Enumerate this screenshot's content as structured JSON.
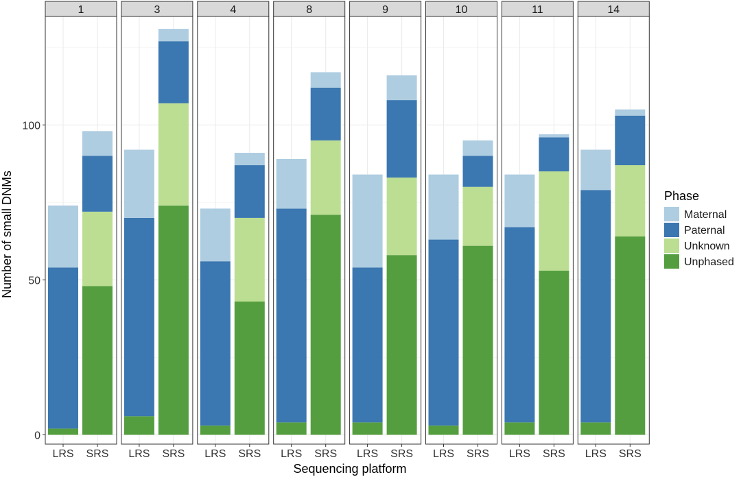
{
  "chart_data": {
    "type": "bar",
    "stacked": true,
    "facet_variable": "sample",
    "facets": [
      "1",
      "3",
      "4",
      "8",
      "9",
      "10",
      "11",
      "14"
    ],
    "categories": [
      "LRS",
      "SRS"
    ],
    "xlabel": "Sequencing platform",
    "ylabel": "Number of small DNMs",
    "ylim": [
      -3,
      135
    ],
    "yticks": [
      0,
      50,
      100
    ],
    "grid": true,
    "legend": {
      "title": "Phase",
      "position": "right",
      "items": [
        {
          "name": "Maternal",
          "color": "#aecde1"
        },
        {
          "name": "Paternal",
          "color": "#3b77b0"
        },
        {
          "name": "Unknown",
          "color": "#bbde93"
        },
        {
          "name": "Unphased",
          "color": "#559e3f"
        }
      ]
    },
    "stack_order": [
      "Unphased",
      "Unknown",
      "Paternal",
      "Maternal"
    ],
    "panels": [
      {
        "facet": "1",
        "bars": [
          {
            "platform": "LRS",
            "Unphased": 2,
            "Unknown": 0,
            "Paternal": 52,
            "Maternal": 20
          },
          {
            "platform": "SRS",
            "Unphased": 48,
            "Unknown": 24,
            "Paternal": 18,
            "Maternal": 8
          }
        ]
      },
      {
        "facet": "3",
        "bars": [
          {
            "platform": "LRS",
            "Unphased": 6,
            "Unknown": 0,
            "Paternal": 64,
            "Maternal": 22
          },
          {
            "platform": "SRS",
            "Unphased": 74,
            "Unknown": 33,
            "Paternal": 20,
            "Maternal": 4
          }
        ]
      },
      {
        "facet": "4",
        "bars": [
          {
            "platform": "LRS",
            "Unphased": 3,
            "Unknown": 0,
            "Paternal": 53,
            "Maternal": 17
          },
          {
            "platform": "SRS",
            "Unphased": 43,
            "Unknown": 27,
            "Paternal": 17,
            "Maternal": 4
          }
        ]
      },
      {
        "facet": "8",
        "bars": [
          {
            "platform": "LRS",
            "Unphased": 4,
            "Unknown": 0,
            "Paternal": 69,
            "Maternal": 16
          },
          {
            "platform": "SRS",
            "Unphased": 71,
            "Unknown": 24,
            "Paternal": 17,
            "Maternal": 5
          }
        ]
      },
      {
        "facet": "9",
        "bars": [
          {
            "platform": "LRS",
            "Unphased": 4,
            "Unknown": 0,
            "Paternal": 50,
            "Maternal": 30
          },
          {
            "platform": "SRS",
            "Unphased": 58,
            "Unknown": 25,
            "Paternal": 25,
            "Maternal": 8
          }
        ]
      },
      {
        "facet": "10",
        "bars": [
          {
            "platform": "LRS",
            "Unphased": 3,
            "Unknown": 0,
            "Paternal": 60,
            "Maternal": 21
          },
          {
            "platform": "SRS",
            "Unphased": 61,
            "Unknown": 19,
            "Paternal": 10,
            "Maternal": 5
          }
        ]
      },
      {
        "facet": "11",
        "bars": [
          {
            "platform": "LRS",
            "Unphased": 4,
            "Unknown": 0,
            "Paternal": 63,
            "Maternal": 17
          },
          {
            "platform": "SRS",
            "Unphased": 53,
            "Unknown": 32,
            "Paternal": 11,
            "Maternal": 1
          }
        ]
      },
      {
        "facet": "14",
        "bars": [
          {
            "platform": "LRS",
            "Unphased": 4,
            "Unknown": 0,
            "Paternal": 75,
            "Maternal": 13
          },
          {
            "platform": "SRS",
            "Unphased": 64,
            "Unknown": 23,
            "Paternal": 16,
            "Maternal": 2
          }
        ]
      }
    ]
  }
}
